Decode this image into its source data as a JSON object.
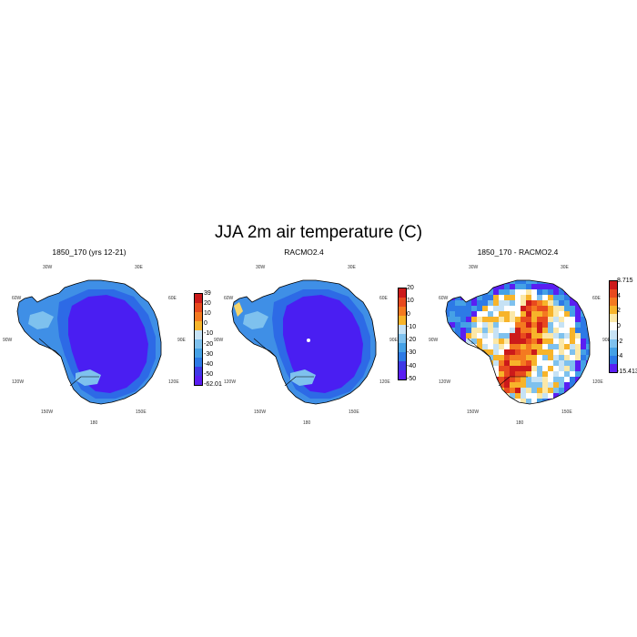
{
  "title": "JJA 2m air temperature (C)",
  "panels": [
    {
      "title": "1850_170 (yrs 12-21)",
      "longitude_labels": {
        "w30": "30W",
        "e30": "30E",
        "w60": "60W",
        "e60": "60E",
        "w90": "90W",
        "e90": "90E",
        "w120": "120W",
        "e120": "120E",
        "w150": "150W",
        "e150": "150E",
        "s180": "180"
      },
      "colorbar": {
        "colors": [
          "#cc1a1a",
          "#e84a1e",
          "#f47a20",
          "#f7b42a",
          "#c6e2f5",
          "#7ec1ee",
          "#45a1e6",
          "#2d7ae6",
          "#3f39e6",
          "#5a1ef2"
        ],
        "labels": [
          "39",
          "20",
          "10",
          "0",
          "-10",
          "-20",
          "-30",
          "-40",
          "-50",
          "-62.01"
        ]
      },
      "style": "cold"
    },
    {
      "title": "RACMO2.4",
      "longitude_labels": {
        "w30": "30W",
        "e30": "30E",
        "w60": "60W",
        "e60": "60E",
        "w90": "90W",
        "e90": "90E",
        "w120": "120W",
        "e120": "120E",
        "w150": "150W",
        "e150": "150E",
        "s180": "180"
      },
      "colorbar": {
        "colors": [
          "#cc1a1a",
          "#e84a1e",
          "#f47a20",
          "#f7b42a",
          "#c6e2f5",
          "#7ec1ee",
          "#45a1e6",
          "#2d7ae6",
          "#3f39e6",
          "#5a1ef2"
        ],
        "labels": [
          "20",
          "10",
          "0",
          "-10",
          "-20",
          "-30",
          "-40",
          "-50"
        ]
      },
      "style": "cold"
    },
    {
      "title": "1850_170 - RACMO2.4",
      "longitude_labels": {
        "w30": "30W",
        "e30": "30E",
        "w60": "60W",
        "e60": "60E",
        "w90": "90W",
        "e90": "90E",
        "w120": "120W",
        "e120": "120E",
        "w150": "150W",
        "e150": "150E",
        "s180": "180"
      },
      "colorbar": {
        "colors": [
          "#cc1a1a",
          "#e84a1e",
          "#f47a20",
          "#f7b42a",
          "#fbe8a8",
          "#ffffff",
          "#c6e2f5",
          "#7ec1ee",
          "#45a1e6",
          "#2d7ae6",
          "#5a1ef2"
        ],
        "labels": [
          "8.715",
          "4",
          "2",
          "0",
          "-2",
          "-4",
          "-15.413"
        ]
      },
      "style": "diff"
    }
  ]
}
